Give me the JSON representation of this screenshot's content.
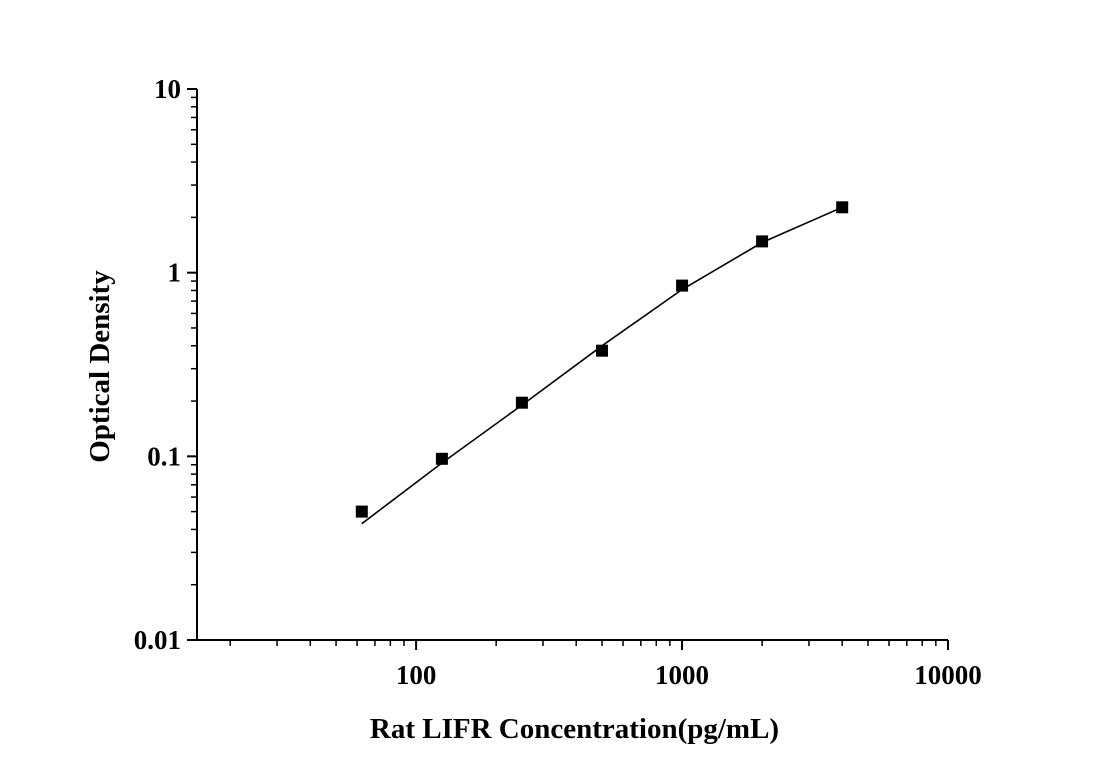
{
  "chart_data": {
    "type": "scatter",
    "xlabel": "Rat LIFR Concentration(pg/mL)",
    "ylabel": "Optical Density",
    "xscale": "log",
    "yscale": "log",
    "xlim": [
      15,
      10000
    ],
    "ylim": [
      0.01,
      10
    ],
    "x_ticks": [
      {
        "value": 100,
        "label": "100"
      },
      {
        "value": 1000,
        "label": "1000"
      },
      {
        "value": 10000,
        "label": "10000"
      }
    ],
    "y_ticks": [
      {
        "value": 0.01,
        "label": "0.01"
      },
      {
        "value": 0.1,
        "label": "0.1"
      },
      {
        "value": 1,
        "label": "1"
      },
      {
        "value": 10,
        "label": "10"
      }
    ],
    "grid": false,
    "legend": false,
    "series": [
      {
        "type": "scatter",
        "marker": "square",
        "color": "#000000",
        "x": [
          62.5,
          125,
          250,
          500,
          1000,
          2000,
          4000
        ],
        "y": [
          0.05,
          0.097,
          0.196,
          0.376,
          0.85,
          1.48,
          2.27
        ]
      },
      {
        "type": "line",
        "description": "fitted curve",
        "color": "#000000",
        "x": [
          62.5,
          125,
          250,
          500,
          1000,
          2000,
          4000
        ],
        "y": [
          0.043,
          0.092,
          0.19,
          0.4,
          0.81,
          1.46,
          2.27
        ]
      }
    ]
  }
}
